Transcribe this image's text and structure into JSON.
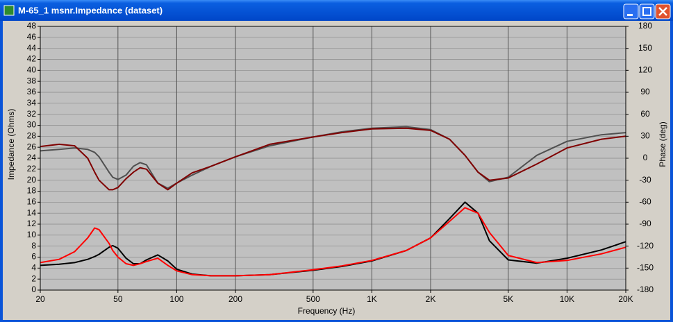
{
  "window": {
    "title": "M-65_1 msnr.Impedance (dataset)"
  },
  "chart_data": {
    "type": "line",
    "xlabel": "Frequency (Hz)",
    "ylabel": "Impedance (Ohms)",
    "y2label": "Phase (deg)",
    "xscale": "log",
    "grid": true,
    "x": [
      20,
      25,
      30,
      35,
      38,
      40,
      45,
      47,
      50,
      55,
      60,
      65,
      70,
      80,
      90,
      100,
      120,
      150,
      200,
      300,
      500,
      700,
      1000,
      1500,
      2000,
      2500,
      3000,
      3500,
      4000,
      5000,
      7000,
      10000,
      15000,
      20000
    ],
    "xlim": [
      20,
      20000
    ],
    "xticks": [
      20,
      50,
      100,
      200,
      500,
      {
        "value": 1000,
        "label": "1K"
      },
      {
        "value": 2000,
        "label": "2K"
      },
      {
        "value": 5000,
        "label": "5K"
      },
      {
        "value": 10000,
        "label": "10K"
      },
      {
        "value": 20000,
        "label": "20K"
      }
    ],
    "ylim": [
      0,
      48
    ],
    "yticks": [
      0,
      2,
      4,
      6,
      8,
      10,
      12,
      14,
      16,
      18,
      20,
      22,
      24,
      26,
      28,
      30,
      32,
      34,
      36,
      38,
      40,
      42,
      44,
      46,
      48
    ],
    "y2lim": [
      -180,
      180
    ],
    "y2ticks": [
      -180,
      -150,
      -120,
      -90,
      -60,
      -30,
      0,
      30,
      60,
      90,
      120,
      150,
      180
    ],
    "series": [
      {
        "color": "#000000",
        "values": [
          4.5,
          4.7,
          5.0,
          5.6,
          6.1,
          6.5,
          7.8,
          8.1,
          7.6,
          5.8,
          4.8,
          4.8,
          5.5,
          6.4,
          5.3,
          3.8,
          2.9,
          2.6,
          2.6,
          2.8,
          3.6,
          4.3,
          5.3,
          7.2,
          9.5,
          13,
          16,
          14,
          9,
          5.5,
          4.9,
          5.8,
          7.3,
          8.8
        ]
      },
      {
        "color": "#ff0000",
        "values": [
          5.0,
          5.6,
          7.0,
          9.5,
          11.3,
          11,
          8.5,
          7.2,
          6,
          4.8,
          4.5,
          4.8,
          5.2,
          5.8,
          4.5,
          3.5,
          2.8,
          2.6,
          2.6,
          2.8,
          3.7,
          4.4,
          5.4,
          7.2,
          9.5,
          12.5,
          15,
          14,
          10.5,
          6.3,
          5,
          5.4,
          6.6,
          7.8
        ]
      },
      {
        "color": "#505050",
        "axis": "y2",
        "values": [
          10,
          12,
          14,
          12,
          8,
          2,
          -19,
          -26,
          -29,
          -23,
          -11,
          -6,
          -9,
          -34,
          -41,
          -34,
          -23,
          -11,
          2,
          17,
          29,
          36,
          41,
          43,
          39,
          26,
          4,
          -19,
          -32,
          -26,
          4,
          23,
          32,
          35
        ]
      },
      {
        "color": "#800000",
        "axis": "y2",
        "values": [
          16,
          19,
          17,
          0,
          -19,
          -30,
          -43,
          -43,
          -40,
          -28,
          -19,
          -13,
          -15,
          -34,
          -43,
          -34,
          -20,
          -11,
          2,
          19,
          29,
          35,
          40,
          41,
          38,
          26,
          4,
          -19,
          -30,
          -27,
          -8,
          14,
          26,
          30
        ]
      }
    ]
  }
}
